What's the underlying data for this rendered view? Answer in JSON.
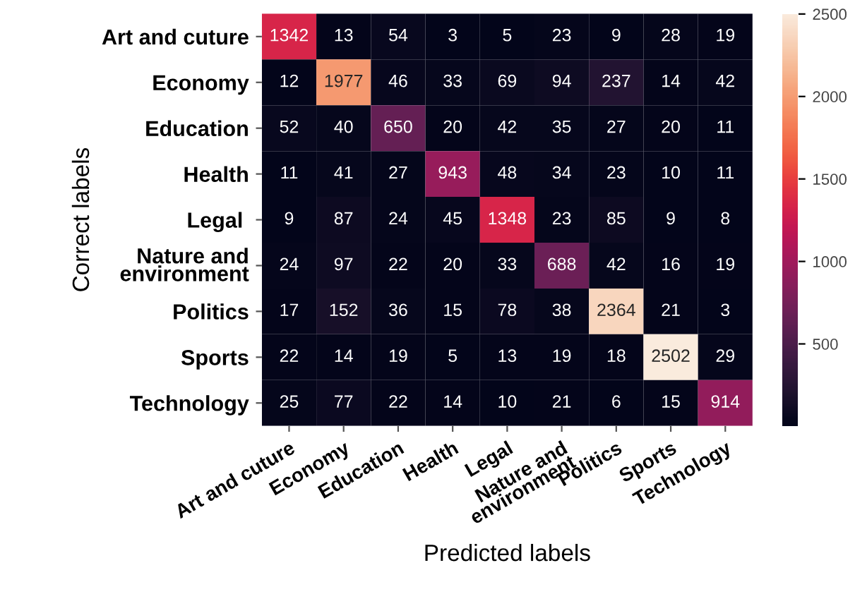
{
  "chart_data": {
    "type": "heatmap",
    "xlabel": "Predicted labels",
    "ylabel": "Correct labels",
    "categories": [
      "Art and cuture",
      "Economy",
      "Education",
      "Health",
      "Legal",
      "Nature and\nenvironment",
      "Politics",
      "Sports",
      "Technology"
    ],
    "y_categories": [
      "Art and cuture",
      "Economy",
      "Education",
      "Health",
      "Legal ",
      "Nature and\nenvironment",
      "Politics",
      "Sports",
      "Technology"
    ],
    "cells": [
      [
        1342,
        13,
        54,
        3,
        5,
        23,
        9,
        28,
        19
      ],
      [
        12,
        1977,
        46,
        33,
        69,
        94,
        237,
        14,
        42
      ],
      [
        52,
        40,
        650,
        20,
        42,
        35,
        27,
        20,
        11
      ],
      [
        11,
        41,
        27,
        943,
        48,
        34,
        23,
        10,
        11
      ],
      [
        9,
        87,
        24,
        45,
        1348,
        23,
        85,
        9,
        8
      ],
      [
        24,
        97,
        22,
        20,
        33,
        688,
        42,
        16,
        19
      ],
      [
        17,
        152,
        36,
        15,
        78,
        38,
        2364,
        21,
        3
      ],
      [
        22,
        14,
        19,
        5,
        13,
        19,
        18,
        2502,
        29
      ],
      [
        25,
        77,
        22,
        14,
        10,
        21,
        6,
        15,
        914
      ]
    ],
    "clim": [
      3,
      2502
    ],
    "cticks": [
      500,
      1000,
      1500,
      2000,
      2500
    ],
    "data_labels": true
  }
}
